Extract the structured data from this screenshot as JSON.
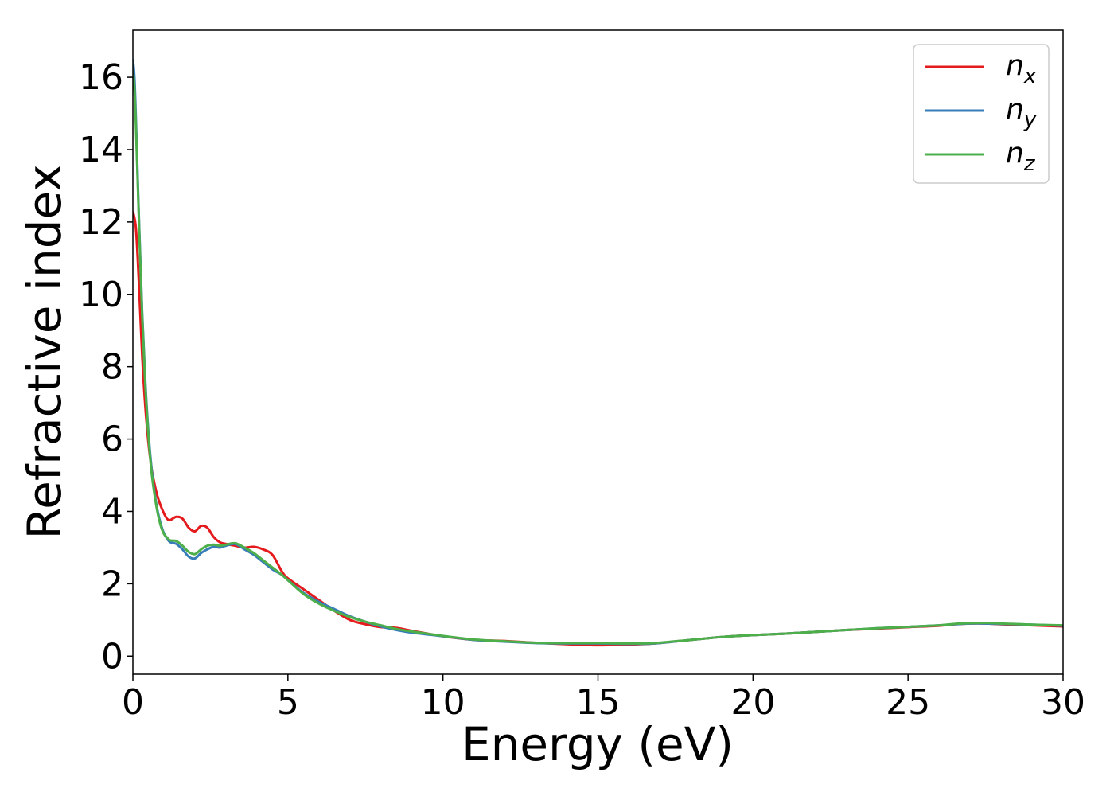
{
  "chart_data": {
    "type": "line",
    "xlabel": "Energy (eV)",
    "ylabel": "Refractive index",
    "xlim": [
      0,
      30
    ],
    "ylim": [
      -0.5,
      17.3
    ],
    "xticks": [
      0,
      5,
      10,
      15,
      20,
      25,
      30
    ],
    "yticks": [
      0,
      2,
      4,
      6,
      8,
      10,
      12,
      14,
      16
    ],
    "grid": false,
    "legend_position": "top-right",
    "series": [
      {
        "name": "n_x",
        "label_base": "n",
        "label_sub": "x",
        "color": "#e41a1c",
        "x": [
          0,
          0.1,
          0.2,
          0.3,
          0.4,
          0.5,
          0.6,
          0.7,
          0.8,
          0.9,
          1.0,
          1.1,
          1.2,
          1.4,
          1.6,
          1.8,
          2.0,
          2.2,
          2.4,
          2.6,
          2.8,
          3.0,
          3.3,
          3.6,
          3.9,
          4.2,
          4.5,
          4.8,
          5.0,
          5.5,
          6.0,
          6.5,
          7.0,
          7.5,
          8.0,
          8.5,
          9.0,
          10,
          11,
          12,
          13,
          14,
          15,
          16,
          16.8,
          18,
          19,
          20,
          21,
          22,
          23,
          24,
          25,
          26,
          26.5,
          27,
          27.5,
          28,
          29,
          30
        ],
        "y": [
          12.3,
          11.8,
          10.2,
          8.3,
          6.9,
          5.9,
          5.2,
          4.75,
          4.4,
          4.15,
          3.95,
          3.8,
          3.76,
          3.85,
          3.8,
          3.55,
          3.45,
          3.6,
          3.55,
          3.3,
          3.15,
          3.1,
          3.05,
          3.0,
          3.02,
          2.95,
          2.8,
          2.35,
          2.15,
          1.85,
          1.55,
          1.25,
          1.0,
          0.88,
          0.8,
          0.78,
          0.7,
          0.55,
          0.45,
          0.42,
          0.37,
          0.33,
          0.3,
          0.32,
          0.35,
          0.45,
          0.53,
          0.58,
          0.62,
          0.67,
          0.72,
          0.76,
          0.8,
          0.84,
          0.88,
          0.9,
          0.9,
          0.88,
          0.85,
          0.82
        ]
      },
      {
        "name": "n_y",
        "label_base": "n",
        "label_sub": "y",
        "color": "#377eb8",
        "x": [
          0,
          0.05,
          0.1,
          0.2,
          0.3,
          0.4,
          0.5,
          0.6,
          0.7,
          0.8,
          0.9,
          1.0,
          1.1,
          1.2,
          1.4,
          1.6,
          1.8,
          2.0,
          2.2,
          2.4,
          2.6,
          2.8,
          3.0,
          3.3,
          3.6,
          3.9,
          4.2,
          4.5,
          4.8,
          5.0,
          5.5,
          6.0,
          6.5,
          7.0,
          7.5,
          8.0,
          8.5,
          9.0,
          10,
          11,
          12,
          13,
          14,
          15,
          16,
          16.8,
          18,
          19,
          20,
          21,
          22,
          23,
          24,
          25,
          26,
          26.5,
          27,
          27.5,
          28,
          29,
          30
        ],
        "y": [
          16.5,
          16.0,
          14.8,
          12.0,
          9.5,
          7.6,
          6.2,
          5.2,
          4.5,
          4.0,
          3.65,
          3.4,
          3.25,
          3.15,
          3.1,
          2.95,
          2.75,
          2.7,
          2.85,
          2.95,
          3.02,
          3.0,
          3.05,
          3.1,
          2.95,
          2.8,
          2.6,
          2.4,
          2.25,
          2.1,
          1.75,
          1.5,
          1.3,
          1.1,
          0.95,
          0.82,
          0.72,
          0.65,
          0.55,
          0.45,
          0.4,
          0.36,
          0.35,
          0.35,
          0.34,
          0.35,
          0.45,
          0.53,
          0.58,
          0.62,
          0.67,
          0.72,
          0.77,
          0.81,
          0.85,
          0.88,
          0.9,
          0.9,
          0.89,
          0.87,
          0.84
        ]
      },
      {
        "name": "n_z",
        "label_base": "n",
        "label_sub": "z",
        "color": "#4daf4a",
        "x": [
          0,
          0.05,
          0.1,
          0.2,
          0.3,
          0.4,
          0.5,
          0.6,
          0.7,
          0.8,
          0.9,
          1.0,
          1.1,
          1.2,
          1.4,
          1.6,
          1.8,
          2.0,
          2.2,
          2.4,
          2.6,
          2.8,
          3.0,
          3.3,
          3.6,
          3.9,
          4.2,
          4.5,
          4.8,
          5.0,
          5.5,
          6.0,
          6.5,
          7.0,
          7.5,
          8.0,
          8.5,
          9.0,
          10,
          11,
          12,
          13,
          14,
          15,
          16,
          16.8,
          18,
          19,
          20,
          21,
          22,
          23,
          24,
          25,
          26,
          26.5,
          27,
          27.5,
          28,
          29,
          30
        ],
        "y": [
          16.2,
          15.7,
          14.6,
          11.9,
          9.4,
          7.5,
          6.1,
          5.1,
          4.45,
          3.95,
          3.6,
          3.38,
          3.28,
          3.2,
          3.18,
          3.05,
          2.88,
          2.82,
          2.95,
          3.05,
          3.08,
          3.05,
          3.08,
          3.12,
          3.0,
          2.85,
          2.65,
          2.45,
          2.25,
          2.1,
          1.72,
          1.45,
          1.25,
          1.08,
          0.95,
          0.85,
          0.75,
          0.68,
          0.56,
          0.46,
          0.41,
          0.37,
          0.36,
          0.36,
          0.35,
          0.36,
          0.45,
          0.53,
          0.58,
          0.62,
          0.67,
          0.72,
          0.77,
          0.81,
          0.85,
          0.89,
          0.91,
          0.92,
          0.9,
          0.87,
          0.85
        ]
      }
    ]
  }
}
